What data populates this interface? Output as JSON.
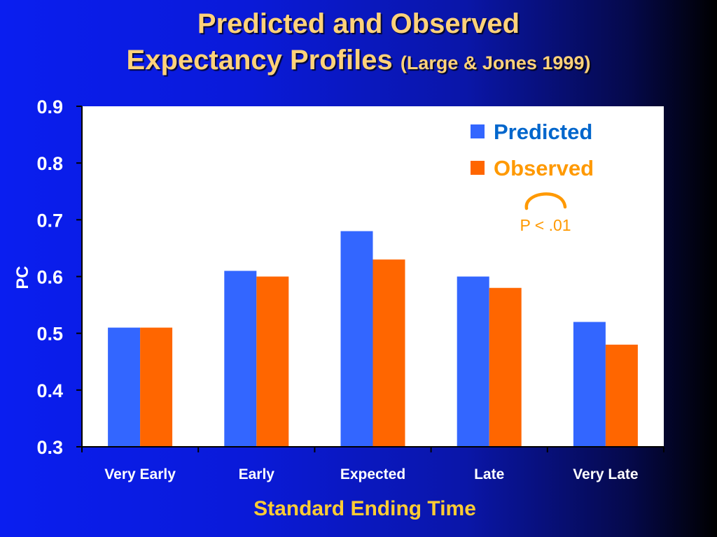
{
  "slide": {
    "title_line1": "Predicted and Observed",
    "title_line2": "Expectancy Profiles",
    "title_ref": "(Large & Jones 1999)"
  },
  "chart_data": {
    "type": "bar",
    "categories": [
      "Very Early",
      "Early",
      "Expected",
      "Late",
      "Very Late"
    ],
    "series": [
      {
        "name": "Predicted",
        "values": [
          0.51,
          0.61,
          0.68,
          0.6,
          0.52
        ],
        "color": "#3366ff"
      },
      {
        "name": "Observed",
        "values": [
          0.51,
          0.6,
          0.63,
          0.58,
          0.48
        ],
        "color": "#ff6600"
      }
    ],
    "xlabel": "Standard Ending Time",
    "ylabel": "PC",
    "ylim": [
      0.3,
      0.9
    ],
    "yticks": [
      "0.3",
      "0.4",
      "0.5",
      "0.6",
      "0.7",
      "0.8",
      "0.9"
    ],
    "legend_position": "top-right",
    "annotation": "P < .01",
    "grid": false
  },
  "colors": {
    "title": "#ffd27a",
    "axis_label": "#ffcc33",
    "annotation": "#ff9900",
    "plot_bg": "#ffffff",
    "predicted_legend_text": "#0066cc",
    "observed_legend_text": "#ff9900"
  }
}
